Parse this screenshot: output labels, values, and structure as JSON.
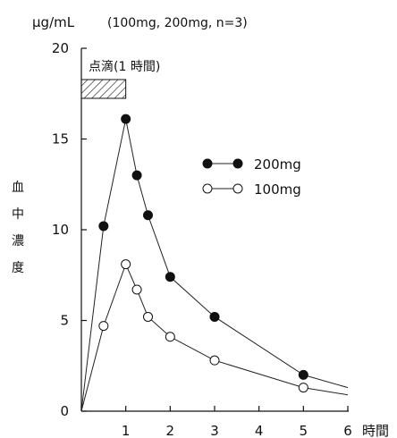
{
  "chart_data": {
    "type": "line",
    "title": "",
    "condition_note": "(100mg, 200mg, n=3)",
    "y_unit": "μg/mL",
    "xlabel": "時間",
    "ylabel": "血中濃度",
    "ylabel_chars": [
      "血",
      "中",
      "濃",
      "度"
    ],
    "xlim": [
      0,
      6
    ],
    "ylim": [
      0,
      20
    ],
    "x_ticks": [
      0,
      1,
      2,
      3,
      4,
      5,
      6
    ],
    "y_ticks": [
      0,
      5,
      10,
      15,
      20
    ],
    "grid": false,
    "legend_position": "top-right",
    "infusion": {
      "label": "点滴(1 時間)",
      "start": 0,
      "end": 1
    },
    "series": [
      {
        "name": "200mg",
        "marker": "filled-circle",
        "x": [
          0.5,
          1,
          1.25,
          1.5,
          2,
          3,
          5
        ],
        "y": [
          10.2,
          16.1,
          13.0,
          10.8,
          7.4,
          5.2,
          2.0
        ],
        "trend_tail": {
          "x": 6,
          "y": 1.3
        }
      },
      {
        "name": "100mg",
        "marker": "open-circle",
        "x": [
          0.5,
          1,
          1.25,
          1.5,
          2,
          3,
          5
        ],
        "y": [
          4.7,
          8.1,
          6.7,
          5.2,
          4.1,
          2.8,
          1.3
        ],
        "trend_tail": {
          "x": 6,
          "y": 0.9
        }
      }
    ]
  }
}
